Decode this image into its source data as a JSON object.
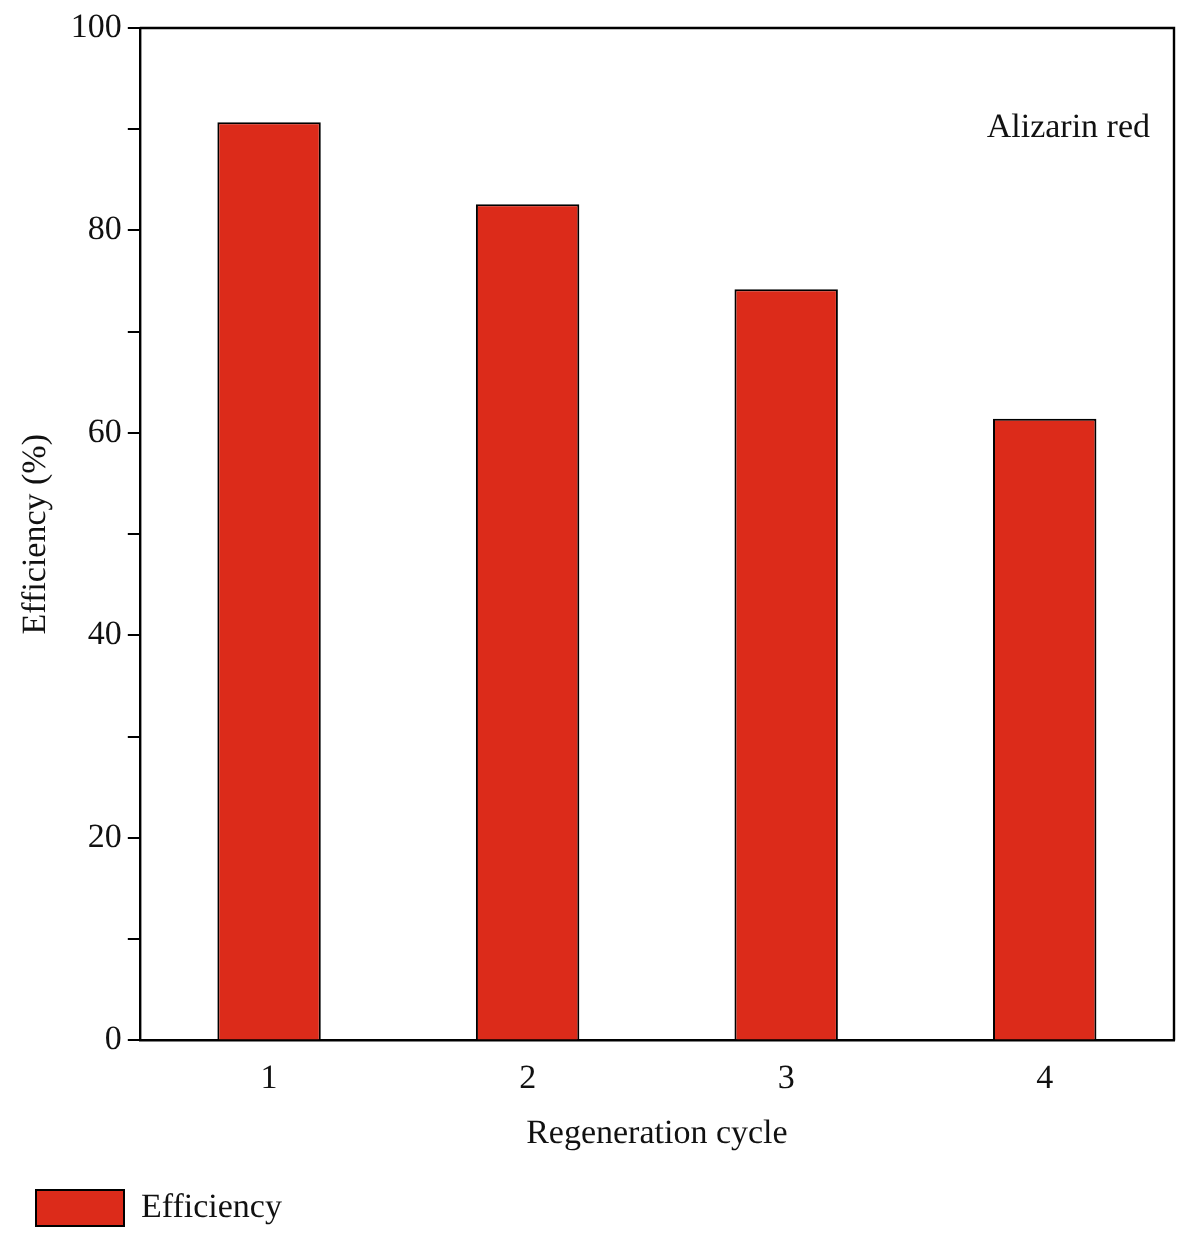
{
  "chart_data": {
    "type": "bar",
    "xlabel": "Regeneration cycle",
    "ylabel": "Efficiency (%)",
    "categories": [
      "1",
      "2",
      "3",
      "4"
    ],
    "series": [
      {
        "name": "Efficiency",
        "color": "#dc2b1a",
        "values": [
          90.7,
          82.6,
          74.2,
          61.4
        ]
      }
    ],
    "ylim": [
      0,
      100
    ],
    "yticks": [
      0,
      {
        "value": 10,
        "label": null
      },
      20,
      {
        "value": 30,
        "label": null
      },
      40,
      {
        "value": 50,
        "label": null
      },
      60,
      {
        "value": 70,
        "label": null
      },
      80,
      {
        "value": 90,
        "label": null
      },
      100
    ],
    "annotations": [
      "Alizarin red"
    ],
    "grid": false,
    "legend": "bottom left"
  }
}
